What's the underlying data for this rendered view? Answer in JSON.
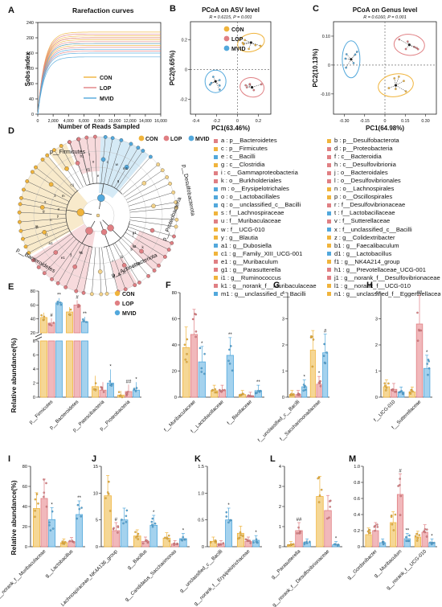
{
  "colors": {
    "con": "#f0b43c",
    "lop": "#e07f83",
    "mvid": "#52a8dc",
    "con_fill": "#f5d795",
    "lop_fill": "#f1b8bb",
    "mvid_fill": "#a4d2ee"
  },
  "groups": [
    "CON",
    "LOP",
    "MVID"
  ],
  "sig": {
    "hash": "#",
    "hash2": "##",
    "star": "*",
    "star2": "**"
  },
  "panelA": {
    "letter": "A",
    "title": "Rarefaction curves",
    "ylabel": "Sobs index",
    "xlabel": "Number of Reads Sampled",
    "yticks": [
      "0",
      "40",
      "80",
      "120",
      "160",
      "200",
      "240"
    ],
    "xticks": [
      "0",
      "2,000",
      "4,000",
      "6,000",
      "8,000",
      "10,000",
      "12,000",
      "14,000",
      "16,000"
    ]
  },
  "panelB": {
    "letter": "B",
    "title": "PCoA on ASV level",
    "stat": "R = 0.6115, P = 0.001",
    "xlabel": "PC1(63.46%)",
    "ylabel": "PC2(9.65%)",
    "xticks": [
      "-0.4",
      "-0.2",
      "0",
      "0.2"
    ],
    "yticks": [
      "-0.2",
      "0",
      "0.2"
    ]
  },
  "panelC": {
    "letter": "C",
    "title": "PCoA on Genus level",
    "stat": "R = 0.6160, P = 0.001",
    "xlabel": "PC1(64.98%)",
    "ylabel": "PC2(10.13%)",
    "xticks": [
      "-0.30",
      "-0.15",
      "0",
      "0.15",
      "0.30"
    ],
    "yticks": [
      "-0.10",
      "0",
      "0.10"
    ]
  },
  "panelD": {
    "letter": "D",
    "clade_labels": [
      "p__Firmicutes",
      "p__Desulfobacterota",
      "p__Proteobacteria",
      "p__Actinobacteriota",
      "p__Bacteroidetes"
    ],
    "node_letters": [
      "a",
      "b",
      "c",
      "d",
      "e",
      "f",
      "g",
      "h",
      "i",
      "j",
      "k",
      "l",
      "m",
      "n",
      "o",
      "p",
      "q",
      "r",
      "s",
      "t",
      "u",
      "v",
      "w",
      "x",
      "y",
      "z",
      "a1",
      "b1",
      "c1",
      "d1",
      "e1",
      "f1",
      "g1",
      "h1",
      "i1",
      "j1",
      "k1",
      "l1",
      "m1",
      "n1"
    ],
    "legend": [
      [
        "a : p__Bacteroidetes",
        "b : p__Desulfobacterota"
      ],
      [
        "c : p__Firmicutes",
        "d : p__Proteobacteria"
      ],
      [
        "e : c__Bacilli",
        "f : c__Bacteroidia"
      ],
      [
        "g : c__Clostridia",
        "h : c__Desulfovibrionia"
      ],
      [
        "i : c__Gammaproteobacteria",
        "j : o__Bacteroidales"
      ],
      [
        "k : o__Burkholderiales",
        "l : o__Desulfovibrionales"
      ],
      [
        "m : o__Erysipelotrichales",
        "n : o__Lachnospirales"
      ],
      [
        "o : o__Lactobacillales",
        "p : o__Oscillospirales"
      ],
      [
        "q : o__unclassified_c__Bacilli",
        "r : f__Desulfovibrionaceae"
      ],
      [
        "s : f__Lachnospiraceae",
        "t : f__Lactobacillaceae"
      ],
      [
        "u : f__Muribaculaceae",
        "v : f__Sutterellaceae"
      ],
      [
        "w : f__UCG-010",
        "x : f__unclassified_c__Bacilli"
      ],
      [
        "y : g__Blautia",
        "z : g__Colidextribacter"
      ],
      [
        "a1 : g__Dubosiella",
        "b1 : g__Faecalibaculum"
      ],
      [
        "c1 : g__Family_XIII_UCG-001",
        "d1 : g__Lactobacillus"
      ],
      [
        "e1 : g__Muribaculum",
        "f1 : g__NK4A214_group"
      ],
      [
        "g1 : g__Parasutterella",
        "h1 : g__Prevotellaceae_UCG-001"
      ],
      [
        "i1 : g__Ruminococcus",
        "j1 : g__norank_f__Desulfovibrionaceae"
      ],
      [
        "k1 : g__norank_f__Muribaculaceae",
        "l1 : g__norank_f__UCG-010"
      ],
      [
        "m1 : g__unclassified_c__Bacilli",
        "n1 : g__unclassified_f__Eggerthellaceae"
      ]
    ],
    "legend_colors": [
      [
        "#e07f83",
        "#f0b43c"
      ],
      [
        "#f0b43c",
        "#e07f83"
      ],
      [
        "#52a8dc",
        "#e07f83"
      ],
      [
        "#f0b43c",
        "#e07f83"
      ],
      [
        "#e07f83",
        "#e07f83"
      ],
      [
        "#e07f83",
        "#e07f83"
      ],
      [
        "#52a8dc",
        "#f0b43c"
      ],
      [
        "#52a8dc",
        "#f0b43c"
      ],
      [
        "#52a8dc",
        "#e07f83"
      ],
      [
        "#f0b43c",
        "#52a8dc"
      ],
      [
        "#e07f83",
        "#e07f83"
      ],
      [
        "#f0b43c",
        "#52a8dc"
      ],
      [
        "#f0b43c",
        "#f0b43c"
      ],
      [
        "#52a8dc",
        "#f0b43c"
      ],
      [
        "#f0b43c",
        "#52a8dc"
      ],
      [
        "#e07f83",
        "#f0b43c"
      ],
      [
        "#e07f83",
        "#e07f83"
      ],
      [
        "#f0b43c",
        "#e07f83"
      ],
      [
        "#e07f83",
        "#f0b43c"
      ],
      [
        "#52a8dc",
        "#f0b43c"
      ]
    ]
  },
  "ylabel_rel": "Relative abundance(%)",
  "panelE": {
    "letter": "E",
    "yticks": [
      "0",
      "20",
      "40",
      "60",
      "80"
    ],
    "yticks_low": [
      "0",
      "2",
      "4",
      "6",
      "8"
    ],
    "categories": [
      "p__Firmicutes",
      "p__Bacteroidetes",
      "p__Patescibacteria",
      "p__Proteobacteria"
    ]
  },
  "panelF": {
    "letter": "F",
    "yticks": [
      "0",
      "20",
      "40",
      "60",
      "80"
    ],
    "categories": [
      "f__Muribaculaceae",
      "f__Lactobacillaceae",
      "f__Bacillaceae"
    ]
  },
  "panelG": {
    "letter": "G",
    "yticks": [
      "0",
      "1",
      "2",
      "3",
      "4"
    ],
    "categories": [
      "f__unclassified_c__Bacilli",
      "f__Saccharimonadaceae"
    ]
  },
  "panelH": {
    "letter": "H",
    "yticks": [
      "0",
      "1",
      "2",
      "3",
      "4"
    ],
    "categories": [
      "f__UCG-010",
      "f__Sutterellaceae"
    ]
  },
  "panelI": {
    "letter": "I",
    "yticks": [
      "0",
      "20",
      "40",
      "60",
      "80"
    ],
    "categories": [
      "g__norank_f__Muribaculaceae",
      "g__Lactobacillus"
    ]
  },
  "panelJ": {
    "letter": "J",
    "yticks": [
      "0",
      "5",
      "10",
      "15"
    ],
    "categories": [
      "g__Lachnospiraceae_NK4A136_group",
      "g__Bacillus",
      "g__Candidatus_Saccharimonas"
    ]
  },
  "panelK": {
    "letter": "K",
    "yticks": [
      "0",
      "0.5",
      "1.0",
      "1.5"
    ],
    "categories": [
      "g__unclassified_c__Bacilli",
      "g__norank_f__Erysipelotrichaceae"
    ]
  },
  "panelL": {
    "letter": "L",
    "yticks": [
      "0",
      "1",
      "2",
      "3",
      "4"
    ],
    "categories": [
      "g__Parasutterella",
      "g__norank_f__Desulfovibrionaceae"
    ]
  },
  "panelM": {
    "letter": "M",
    "yticks": [
      "0",
      "0.2",
      "0.4",
      "0.6",
      "0.8",
      "1.0"
    ],
    "categories": [
      "g__Gordonibacter",
      "g__Muribaculum",
      "g__norank_f__UCG-010"
    ]
  },
  "chart_data": [
    {
      "type": "line",
      "title": "Rarefaction curves",
      "xlabel": "Number of Reads Sampled",
      "ylabel": "Sobs index",
      "xlim": [
        0,
        16000
      ],
      "ylim": [
        0,
        240
      ],
      "series": [
        {
          "name": "CON",
          "plateaus": [
            215,
            205,
            200,
            195,
            185,
            180
          ]
        },
        {
          "name": "LOP",
          "plateaus": [
            210,
            200,
            190,
            175,
            165
          ]
        },
        {
          "name": "MVID",
          "plateaus": [
            185,
            170,
            160,
            150
          ]
        }
      ]
    },
    {
      "type": "scatter",
      "title": "PCoA on ASV level",
      "xlabel": "PC1(63.46%)",
      "ylabel": "PC2(9.65%)",
      "centroids": [
        {
          "name": "CON",
          "x": 0.13,
          "y": 0.18
        },
        {
          "name": "LOP",
          "x": 0.14,
          "y": -0.12
        },
        {
          "name": "MVID",
          "x": -0.21,
          "y": -0.08
        }
      ]
    },
    {
      "type": "scatter",
      "title": "PCoA on Genus level",
      "xlabel": "PC1(64.98%)",
      "ylabel": "PC2(10.13%)",
      "centroids": [
        {
          "name": "CON",
          "x": 0.08,
          "y": -0.07
        },
        {
          "name": "LOP",
          "x": 0.18,
          "y": 0.07
        },
        {
          "name": "MVID",
          "x": -0.25,
          "y": 0.02
        }
      ]
    },
    {
      "type": "bar",
      "panel": "E",
      "ylabel": "Relative abundance(%)",
      "categories": [
        "p__Firmicutes",
        "p__Bacteroidetes",
        "p__Patescibacteria",
        "p__Proteobacteria"
      ],
      "series": [
        {
          "name": "CON",
          "values": [
            42,
            50,
            1.5,
            0.3
          ]
        },
        {
          "name": "LOP",
          "values": [
            34,
            60,
            1.0,
            0.8
          ]
        },
        {
          "name": "MVID",
          "values": [
            63,
            36,
            2.0,
            1.0
          ]
        }
      ]
    },
    {
      "type": "bar",
      "panel": "F",
      "ylabel": "Relative abundance(%)",
      "categories": [
        "f__Muribaculaceae",
        "f__Lactobacillaceae",
        "f__Bacillaceae"
      ],
      "series": [
        {
          "name": "CON",
          "values": [
            38,
            5,
            2
          ]
        },
        {
          "name": "LOP",
          "values": [
            48,
            5,
            1
          ]
        },
        {
          "name": "MVID",
          "values": [
            27,
            32,
            5
          ]
        }
      ]
    },
    {
      "type": "bar",
      "panel": "G",
      "categories": [
        "f__unclassified_c__Bacilli",
        "f__Saccharimonadaceae"
      ],
      "series": [
        {
          "name": "CON",
          "values": [
            0.1,
            1.8
          ]
        },
        {
          "name": "LOP",
          "values": [
            0.1,
            0.5
          ]
        },
        {
          "name": "MVID",
          "values": [
            0.4,
            1.7
          ]
        }
      ]
    },
    {
      "type": "bar",
      "panel": "H",
      "categories": [
        "f__UCG-010",
        "f__Sutterellaceae"
      ],
      "series": [
        {
          "name": "CON",
          "values": [
            0.4,
            0.2
          ]
        },
        {
          "name": "LOP",
          "values": [
            0.3,
            2.8
          ]
        },
        {
          "name": "MVID",
          "values": [
            0.2,
            1.1
          ]
        }
      ]
    },
    {
      "type": "bar",
      "panel": "I",
      "ylabel": "Relative abundance(%)",
      "categories": [
        "g__norank_f__Muribaculaceae",
        "g__Lactobacillus"
      ],
      "series": [
        {
          "name": "CON",
          "values": [
            38,
            4
          ]
        },
        {
          "name": "LOP",
          "values": [
            48,
            5
          ]
        },
        {
          "name": "MVID",
          "values": [
            27,
            32
          ]
        }
      ]
    },
    {
      "type": "bar",
      "panel": "J",
      "categories": [
        "g__Lachnospiraceae_NK4A136_group",
        "g__Bacillus",
        "g__Candidatus_Saccharimonas"
      ],
      "series": [
        {
          "name": "CON",
          "values": [
            9.5,
            2,
            1.6
          ]
        },
        {
          "name": "LOP",
          "values": [
            3,
            1,
            0.5
          ]
        },
        {
          "name": "MVID",
          "values": [
            5,
            4,
            1.5
          ]
        }
      ]
    },
    {
      "type": "bar",
      "panel": "K",
      "categories": [
        "g__unclassified_c__Bacilli",
        "g__norank_f__Erysipelotrichaceae"
      ],
      "series": [
        {
          "name": "CON",
          "values": [
            0.1,
            0.25
          ]
        },
        {
          "name": "LOP",
          "values": [
            0.05,
            0.1
          ]
        },
        {
          "name": "MVID",
          "values": [
            0.5,
            0.12
          ]
        }
      ]
    },
    {
      "type": "bar",
      "panel": "L",
      "categories": [
        "g__Parasutterella",
        "g__norank_f__Desulfovibrionaceae"
      ],
      "series": [
        {
          "name": "CON",
          "values": [
            0.1,
            2.5
          ]
        },
        {
          "name": "LOP",
          "values": [
            0.8,
            1.8
          ]
        },
        {
          "name": "MVID",
          "values": [
            0.2,
            0.1
          ]
        }
      ]
    },
    {
      "type": "bar",
      "panel": "M",
      "categories": [
        "g__Gordonibacter",
        "g__Muribaculum",
        "g__norank_f__UCG-010"
      ],
      "series": [
        {
          "name": "CON",
          "values": [
            0.15,
            0.3,
            0.12
          ]
        },
        {
          "name": "LOP",
          "values": [
            0.2,
            0.65,
            0.18
          ]
        },
        {
          "name": "MVID",
          "values": [
            0.05,
            0.1,
            0.05
          ]
        }
      ]
    }
  ]
}
